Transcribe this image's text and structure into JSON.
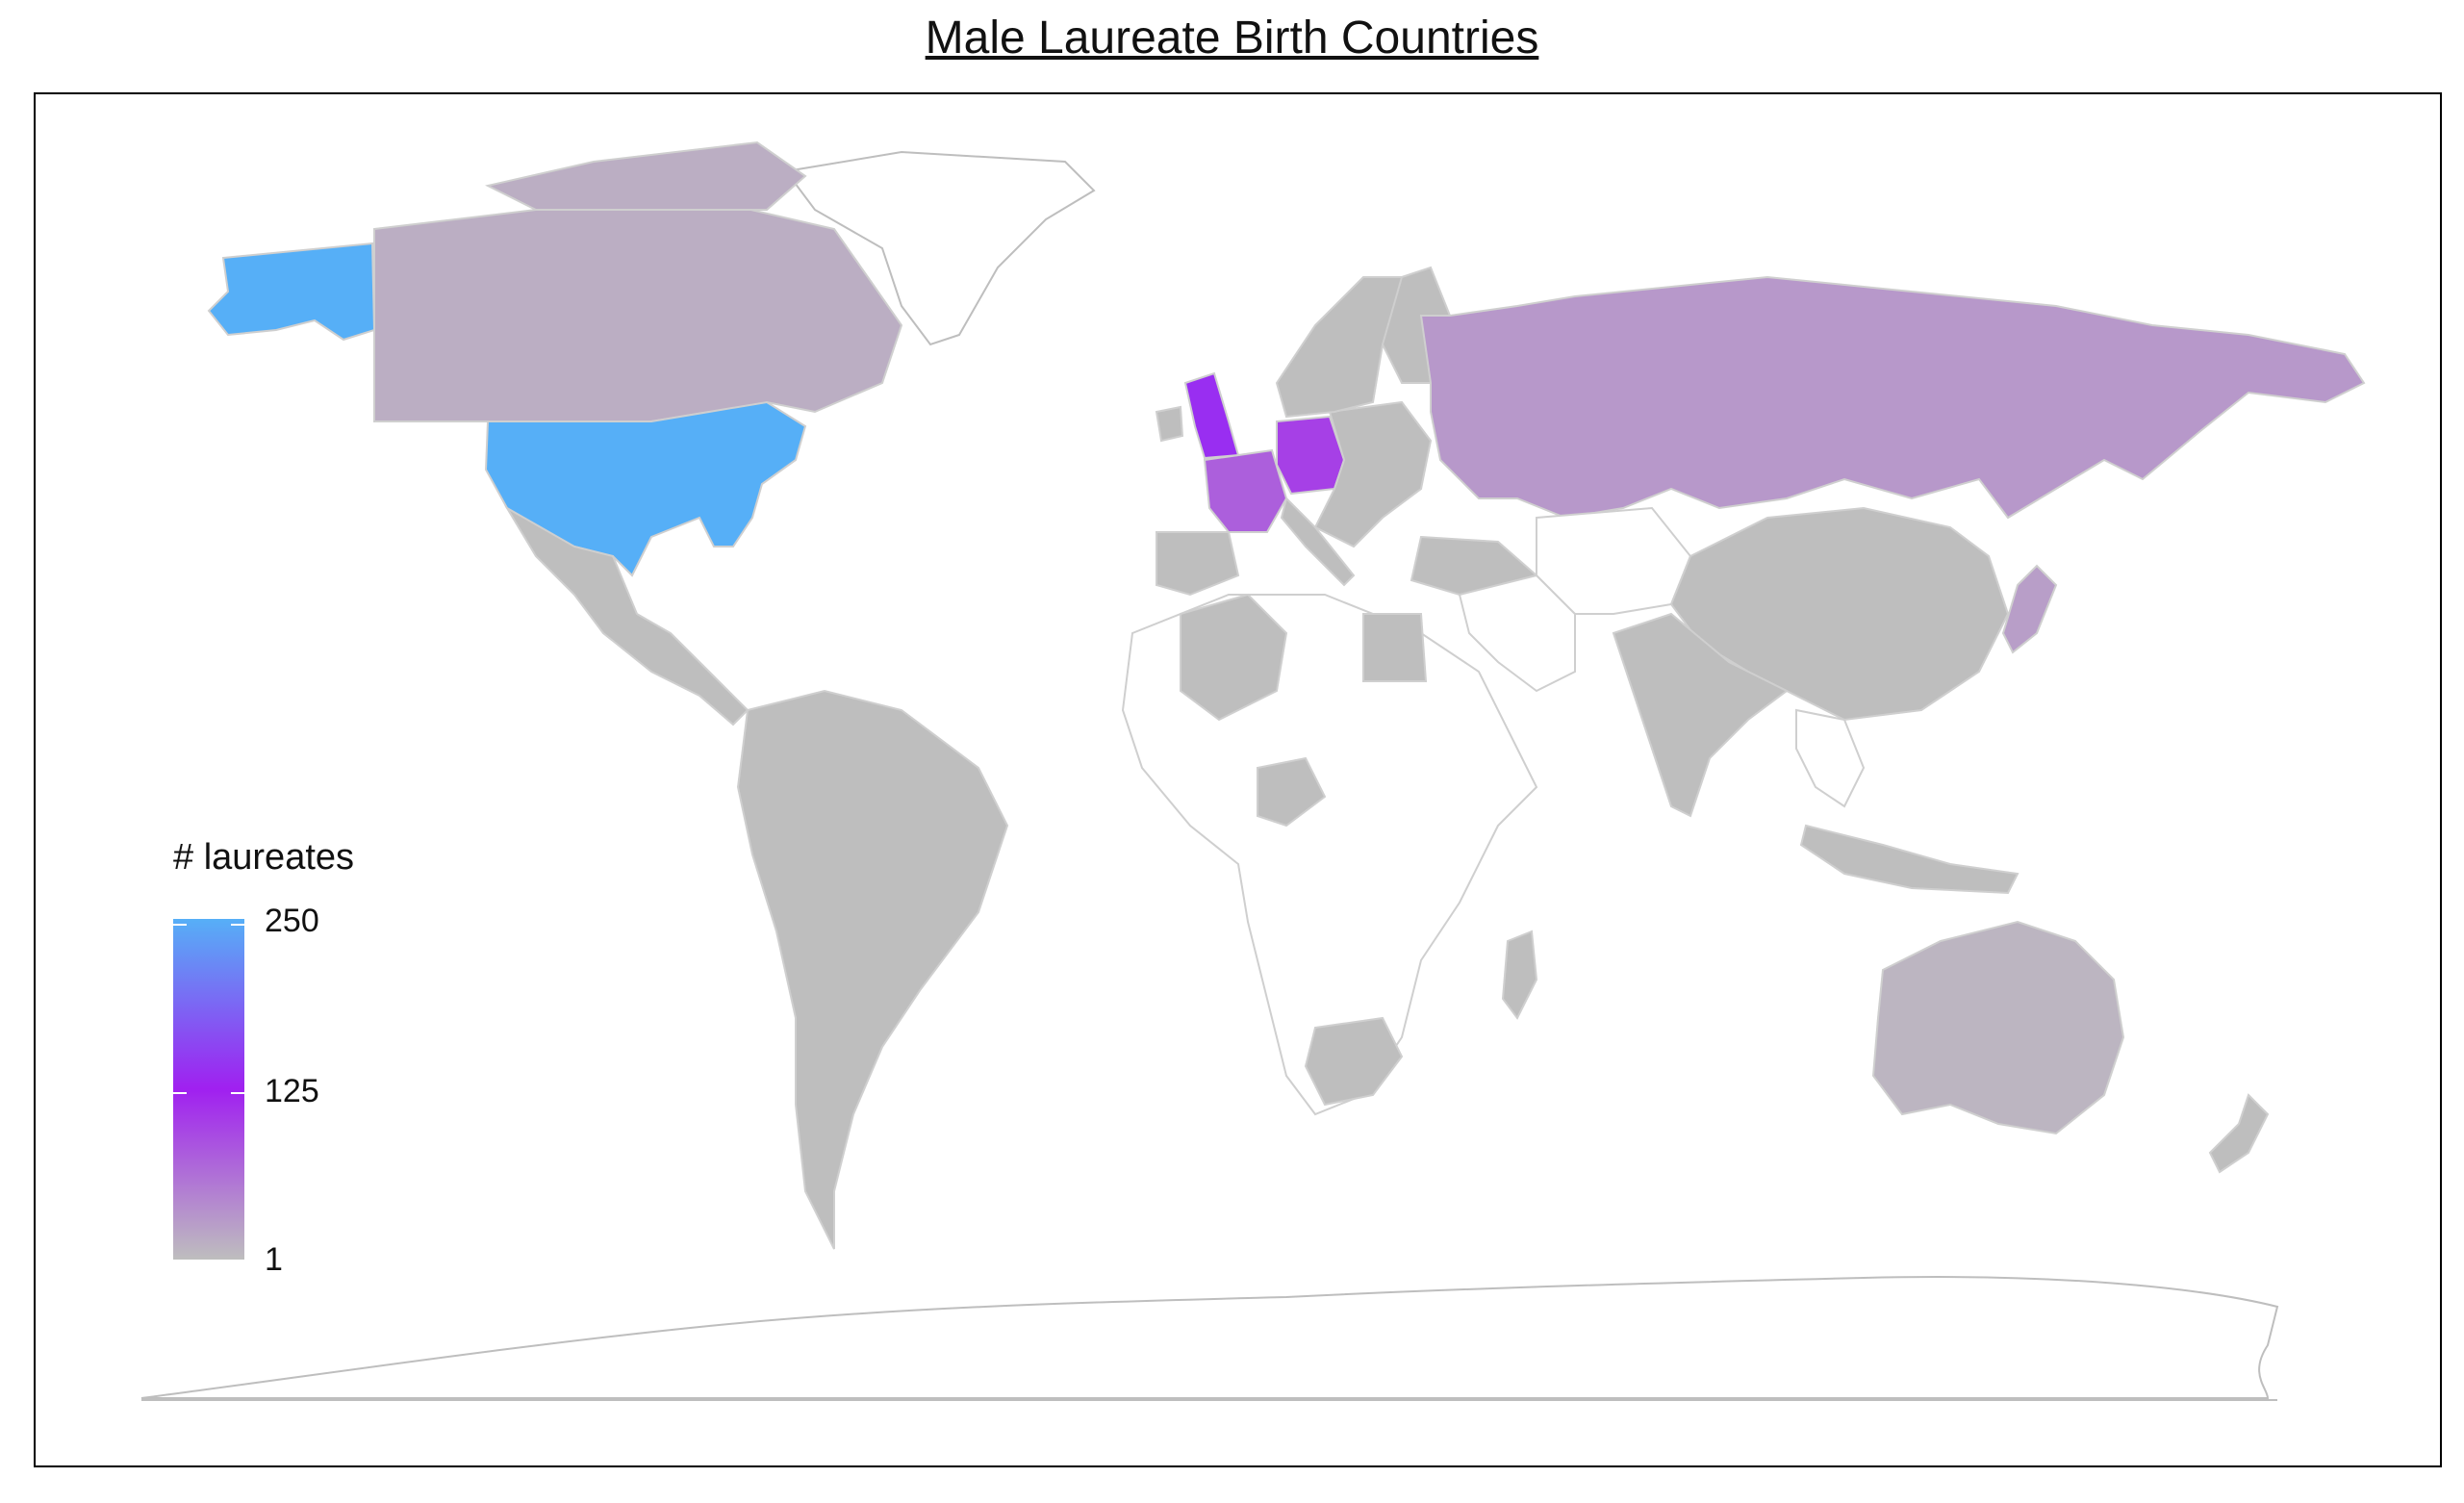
{
  "map": {
    "title": "Male Laureate Birth Countries",
    "legend": {
      "title": "# laureates",
      "ticks": [
        {
          "label": "250",
          "value": 250
        },
        {
          "label": "125",
          "value": 125
        },
        {
          "label": "1",
          "value": 1
        }
      ],
      "min": 1,
      "max": 250
    },
    "colors": {
      "low": "#bebebe",
      "mid": "#a020f0",
      "high": "#56aff7",
      "no_data": "#ffffff",
      "border": "#bebebe",
      "panel_border": "#000000"
    },
    "regions_with_data": [
      {
        "name": "United States",
        "relative_level": 1.0
      },
      {
        "name": "United Kingdom",
        "relative_level": 0.55
      },
      {
        "name": "Germany",
        "relative_level": 0.4
      },
      {
        "name": "France",
        "relative_level": 0.3
      },
      {
        "name": "Russia",
        "relative_level": 0.12
      },
      {
        "name": "Canada",
        "relative_level": 0.05
      },
      {
        "name": "Japan",
        "relative_level": 0.1
      },
      {
        "name": "Australia",
        "relative_level": 0.03
      }
    ]
  }
}
